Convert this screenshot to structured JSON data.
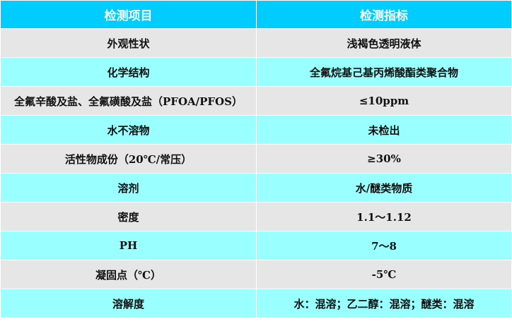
{
  "header": {
    "item": "检测项目",
    "spec": "检测指标"
  },
  "colors": {
    "header": "#00ccff",
    "row_gray": "#e6e6e6",
    "row_cyan": "#99ffff"
  },
  "rows": [
    {
      "item": "外观性状",
      "spec": "浅褐色透明液体"
    },
    {
      "item": "化学结构",
      "spec": "全氟烷基己基丙烯酸酯类聚合物"
    },
    {
      "item": "全氟辛酸及盐、全氟磺酸及盐（PFOA/PFOS）",
      "spec": "≤10ppm"
    },
    {
      "item": "水不溶物",
      "spec": "未检出"
    },
    {
      "item": "活性物成份（20℃/常压）",
      "spec": "≥30%"
    },
    {
      "item": "溶剂",
      "spec": "水/醚类物质"
    },
    {
      "item": "密度",
      "spec": "1.1～1.12"
    },
    {
      "item": "PH",
      "spec": "7～8"
    },
    {
      "item": "凝固点（℃）",
      "spec": "-5℃"
    },
    {
      "item": "溶解度",
      "spec": "水：混溶；乙二醇：混溶；醚类：混溶"
    }
  ]
}
